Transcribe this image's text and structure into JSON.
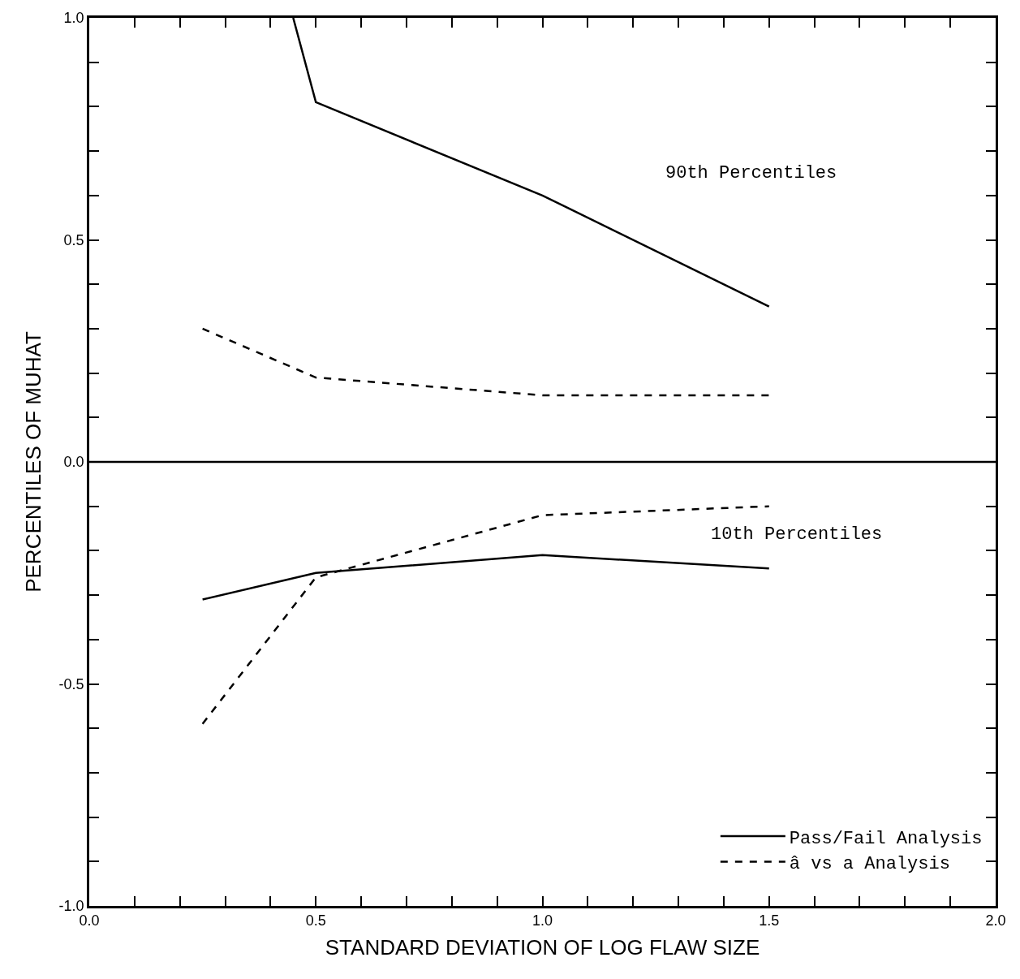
{
  "chart_data": {
    "type": "line",
    "xlabel": "STANDARD DEVIATION OF LOG FLAW SIZE",
    "ylabel": "PERCENTILES OF MUHAT",
    "xlim": [
      0,
      2.0
    ],
    "ylim": [
      -1.0,
      1.0
    ],
    "xticks": [
      {
        "value": 0,
        "label": "0.0"
      },
      {
        "value": 0.1,
        "label": null
      },
      {
        "value": 0.2,
        "label": null
      },
      {
        "value": 0.3,
        "label": null
      },
      {
        "value": 0.4,
        "label": null
      },
      {
        "value": 0.5,
        "label": "0.5"
      },
      {
        "value": 0.6,
        "label": null
      },
      {
        "value": 0.7,
        "label": null
      },
      {
        "value": 0.8,
        "label": null
      },
      {
        "value": 0.9,
        "label": null
      },
      {
        "value": 1.0,
        "label": "1.0"
      },
      {
        "value": 1.1,
        "label": null
      },
      {
        "value": 1.2,
        "label": null
      },
      {
        "value": 1.3,
        "label": null
      },
      {
        "value": 1.4,
        "label": null
      },
      {
        "value": 1.5,
        "label": "1.5"
      },
      {
        "value": 1.6,
        "label": null
      },
      {
        "value": 1.7,
        "label": null
      },
      {
        "value": 1.8,
        "label": null
      },
      {
        "value": 1.9,
        "label": null
      },
      {
        "value": 2.0,
        "label": "2.0"
      }
    ],
    "yticks": [
      {
        "value": -1.0,
        "label": "-1.0"
      },
      {
        "value": -0.9,
        "label": null
      },
      {
        "value": -0.8,
        "label": null
      },
      {
        "value": -0.7,
        "label": null
      },
      {
        "value": -0.6,
        "label": null
      },
      {
        "value": -0.5,
        "label": "-0.5"
      },
      {
        "value": -0.4,
        "label": null
      },
      {
        "value": -0.3,
        "label": null
      },
      {
        "value": -0.2,
        "label": null
      },
      {
        "value": -0.1,
        "label": null
      },
      {
        "value": 0,
        "label": "0.0"
      },
      {
        "value": 0.1,
        "label": null
      },
      {
        "value": 0.2,
        "label": null
      },
      {
        "value": 0.3,
        "label": null
      },
      {
        "value": 0.4,
        "label": null
      },
      {
        "value": 0.5,
        "label": "0.5"
      },
      {
        "value": 0.6,
        "label": null
      },
      {
        "value": 0.7,
        "label": null
      },
      {
        "value": 0.8,
        "label": null
      },
      {
        "value": 0.9,
        "label": null
      },
      {
        "value": 1.0,
        "label": "1.0"
      }
    ],
    "grid": false,
    "legend": "bottom right",
    "marker": "none",
    "series": [
      {
        "name": "Pass/Fail Analysis",
        "color": "#000000",
        "line_style": "solid",
        "x": [
          0.45,
          0.5,
          1.0,
          1.5
        ],
        "values": [
          1.0,
          0.81,
          0.6,
          0.35
        ]
      },
      {
        "name": "â vs a Analysis",
        "color": "#000000",
        "line_style": "dashed",
        "x": [
          0.25,
          0.5,
          1.0,
          1.5
        ],
        "values": [
          0.3,
          0.19,
          0.15,
          0.15
        ]
      },
      {
        "color": "#000000",
        "line_style": "solid",
        "x": [
          0.25,
          0.5,
          1.0,
          1.5
        ],
        "values": [
          -0.31,
          -0.25,
          -0.21,
          -0.24
        ]
      },
      {
        "color": "#000000",
        "line_style": "dashed",
        "x": [
          0.25,
          0.5,
          1.0,
          1.5
        ],
        "values": [
          -0.59,
          -0.26,
          -0.12,
          -0.1
        ]
      }
    ],
    "ref_lines": [
      {
        "axis": "y",
        "value": 0,
        "color": "#000000",
        "line_style": "solid"
      }
    ],
    "annotations": [
      "90th Percentiles",
      "10th Percentiles"
    ]
  }
}
